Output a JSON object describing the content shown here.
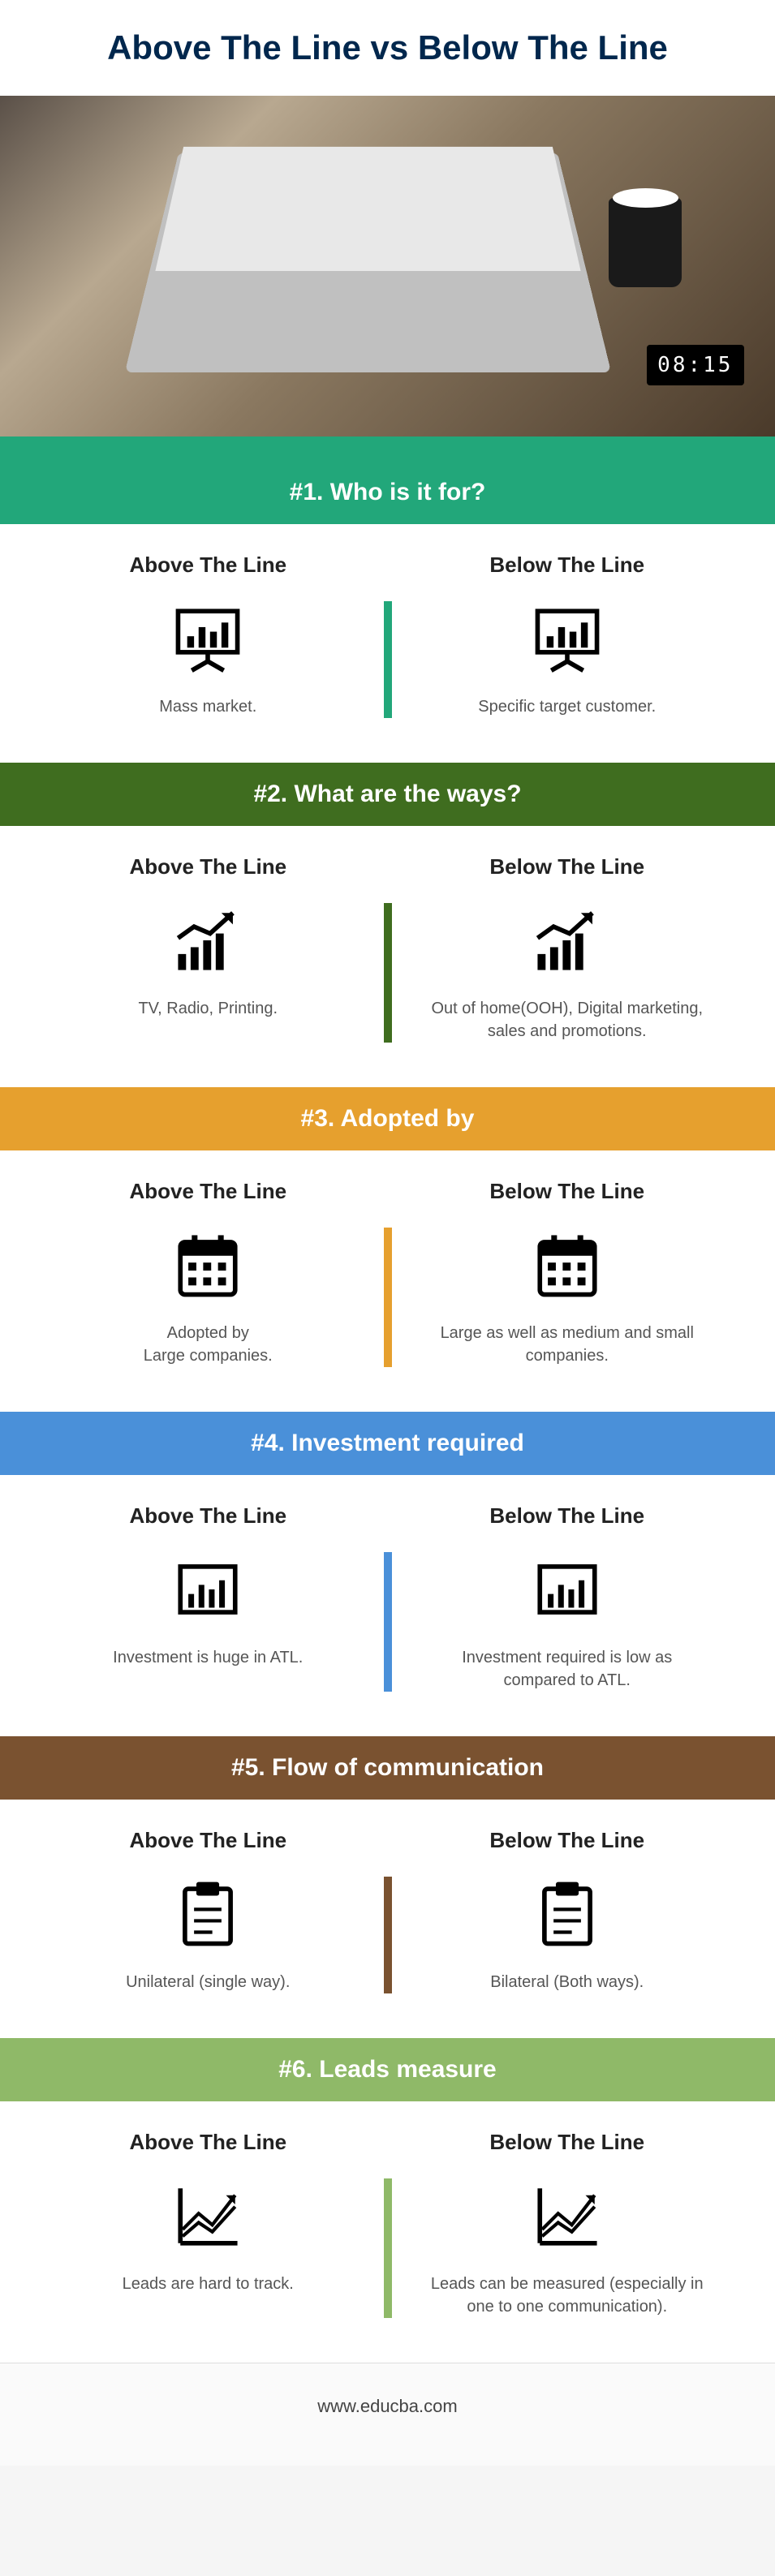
{
  "title": "Above The Line vs Below The Line",
  "hero_clock": "08:15",
  "colors": {
    "title_text": "#00274d",
    "strip": "#22a77a",
    "footer_text": "#444444"
  },
  "column_labels": {
    "left": "Above The Line",
    "right": "Below The Line"
  },
  "sections": [
    {
      "num": "#1.",
      "heading": "Who is it for?",
      "header_bg": "#22a77a",
      "divider_bg": "#22a77a",
      "icon": "presentation",
      "left_text": "Mass market.",
      "right_text": "Specific target customer."
    },
    {
      "num": "#2.",
      "heading": "What are the ways?",
      "header_bg": "#3f6d1f",
      "divider_bg": "#3f6d1f",
      "icon": "growth",
      "left_text": "TV, Radio, Printing.",
      "right_text": "Out of home(OOH), Digital marketing, sales and promotions."
    },
    {
      "num": "#3.",
      "heading": "Adopted by",
      "header_bg": "#e6a02e",
      "divider_bg": "#e6a02e",
      "icon": "calendar",
      "left_text": "Adopted by\nLarge companies.",
      "right_text": "Large as well as medium and small companies."
    },
    {
      "num": "#4.",
      "heading": "Investment required",
      "header_bg": "#4a90d9",
      "divider_bg": "#4a90d9",
      "icon": "barchart",
      "left_text": "Investment is huge in ATL.",
      "right_text": "Investment required is low as compared to ATL."
    },
    {
      "num": "#5.",
      "heading": "Flow of communication",
      "header_bg": "#7a5230",
      "divider_bg": "#7a5230",
      "icon": "clipboard",
      "left_text": "Unilateral (single way).",
      "right_text": "Bilateral (Both ways)."
    },
    {
      "num": "#6.",
      "heading": "Leads measure",
      "header_bg": "#8fb968",
      "divider_bg": "#8fb968",
      "icon": "linechart",
      "left_text": "Leads are hard to track.",
      "right_text": "Leads can be measured (especially in one to one communication)."
    }
  ],
  "footer": "www.educba.com"
}
